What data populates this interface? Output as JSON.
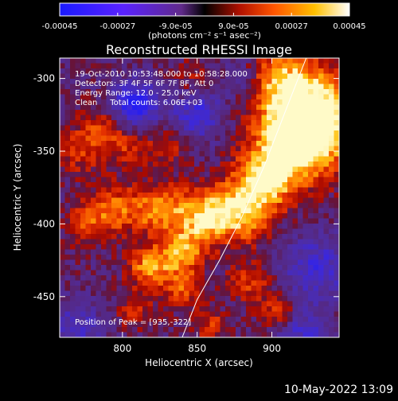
{
  "colorbar": {
    "ticks": [
      "-0.00045",
      "-0.00027",
      "-9.0e-05",
      "9.0e-05",
      "0.00027",
      "0.00045"
    ],
    "units": "(photons cm⁻² s⁻¹ asec⁻²)",
    "range": [
      -0.00045,
      0.00045
    ]
  },
  "chart_data": {
    "type": "heatmap",
    "title": "Reconstructed RHESSI Image",
    "xlabel": "Heliocentric X (arcsec)",
    "ylabel": "Heliocentric Y (arcsec)",
    "xlim": [
      758,
      945
    ],
    "ylim": [
      -478,
      -286
    ],
    "xticks": [
      "800",
      "850",
      "900"
    ],
    "yticks": [
      "-300",
      "-350",
      "-400",
      "-450"
    ],
    "xtick_values": [
      800,
      850,
      900
    ],
    "ytick_values": [
      -300,
      -350,
      -400,
      -450
    ],
    "annotations": [
      "19-Oct-2010 10:53:48.000 to 10:58:28.000",
      "Detectors: 3F 4F 5F 6F 7F 8F, Att 0",
      "Energy Range: 12.0 - 25.0 keV",
      "Clean     Total counts: 6.06E+03"
    ],
    "peak_label": "Position of Peak = [935,-322]",
    "peak_position": [
      935,
      -322
    ],
    "limb_curve": [
      [
        923,
        -286
      ],
      [
        910,
        -320
      ],
      [
        895,
        -360
      ],
      [
        880,
        -395
      ],
      [
        865,
        -425
      ],
      [
        850,
        -452
      ],
      [
        840,
        -478
      ]
    ],
    "hotspots": [
      {
        "x": 930,
        "y": -325,
        "a": 1.0,
        "s": 22
      },
      {
        "x": 915,
        "y": -345,
        "a": 0.9,
        "s": 18
      },
      {
        "x": 895,
        "y": -370,
        "a": 0.8,
        "s": 14
      },
      {
        "x": 905,
        "y": -300,
        "a": 0.6,
        "s": 16
      },
      {
        "x": 880,
        "y": -392,
        "a": 0.75,
        "s": 14
      },
      {
        "x": 855,
        "y": -395,
        "a": 0.8,
        "s": 13
      },
      {
        "x": 825,
        "y": -390,
        "a": 0.7,
        "s": 12
      },
      {
        "x": 795,
        "y": -390,
        "a": 0.55,
        "s": 12
      },
      {
        "x": 775,
        "y": -400,
        "a": 0.45,
        "s": 10
      },
      {
        "x": 840,
        "y": -420,
        "a": 0.75,
        "s": 10
      },
      {
        "x": 818,
        "y": -430,
        "a": 0.7,
        "s": 10
      },
      {
        "x": 840,
        "y": -445,
        "a": 0.5,
        "s": 9
      },
      {
        "x": 790,
        "y": -335,
        "a": 0.45,
        "s": 12
      },
      {
        "x": 770,
        "y": -350,
        "a": 0.35,
        "s": 12
      },
      {
        "x": 808,
        "y": -350,
        "a": 0.3,
        "s": 9
      },
      {
        "x": 832,
        "y": -345,
        "a": 0.3,
        "s": 10
      },
      {
        "x": 885,
        "y": -440,
        "a": 0.45,
        "s": 10
      },
      {
        "x": 905,
        "y": -460,
        "a": 0.45,
        "s": 9
      },
      {
        "x": 860,
        "y": -470,
        "a": 0.4,
        "s": 8
      },
      {
        "x": 808,
        "y": -460,
        "a": 0.35,
        "s": 9
      },
      {
        "x": 848,
        "y": -300,
        "a": 0.25,
        "s": 10
      }
    ],
    "coldspots": [
      {
        "x": 808,
        "y": -318,
        "a": 0.9,
        "s": 11
      },
      {
        "x": 850,
        "y": -325,
        "a": 0.6,
        "s": 12
      },
      {
        "x": 930,
        "y": -430,
        "a": 0.55,
        "s": 16
      },
      {
        "x": 920,
        "y": -475,
        "a": 0.5,
        "s": 12
      },
      {
        "x": 770,
        "y": -470,
        "a": 0.45,
        "s": 12
      },
      {
        "x": 880,
        "y": -300,
        "a": 0.35,
        "s": 10
      }
    ]
  },
  "footer": {
    "timestamp": "10-May-2022 13:09"
  }
}
